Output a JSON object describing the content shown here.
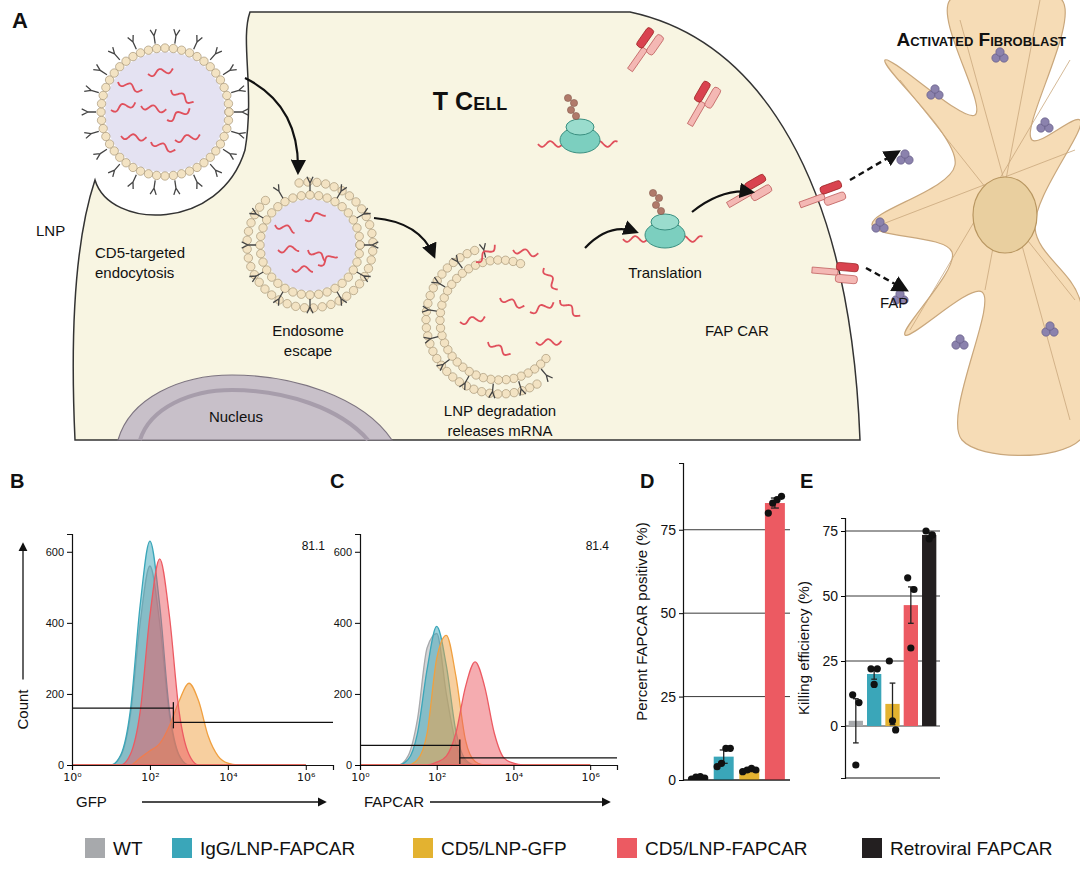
{
  "diagram": {
    "label": "A",
    "cell": "T Cell",
    "target": "Activated Fibroblast",
    "particle": "LNP",
    "steps": [
      [
        "CD5-targeted",
        "endocytosis"
      ],
      [
        "Endosome",
        "escape"
      ],
      [
        "LNP degradation",
        "releases mRNA"
      ],
      [
        "Translation"
      ]
    ],
    "receptor": "FAP CAR",
    "antigen": "FAP",
    "nucleus": "Nucleus"
  },
  "chart_data": [
    {
      "type": "area",
      "title": "B",
      "log": "x",
      "x": [
        1,
        1.78,
        3.16,
        5.62,
        10,
        17.8,
        31.6,
        56.2,
        100,
        178,
        316,
        562,
        1000,
        1780,
        3160,
        5620,
        10000,
        17800,
        31600,
        56200,
        100000,
        178000,
        316000,
        562000,
        1000000
      ],
      "series": [
        {
          "color": "#a7a9ac",
          "values": [
            0,
            0,
            0,
            0,
            0,
            25,
            140,
            400,
            560,
            400,
            140,
            25,
            0,
            0,
            0,
            0,
            0,
            0,
            0,
            0,
            0,
            0,
            0,
            0,
            0
          ]
        },
        {
          "color": "#3aa6b9",
          "values": [
            0,
            0,
            0,
            0,
            0,
            28,
            155,
            450,
            630,
            450,
            155,
            28,
            0,
            0,
            0,
            0,
            0,
            0,
            0,
            0,
            0,
            0,
            0,
            0,
            0
          ]
        },
        {
          "color": "#f0a040",
          "values": [
            0,
            0,
            0,
            0,
            0,
            0,
            0,
            20,
            40,
            60,
            110,
            180,
            230,
            180,
            80,
            25,
            5,
            0,
            0,
            0,
            0,
            0,
            0,
            0,
            0
          ]
        },
        {
          "color": "#ec5a62",
          "values": [
            0,
            0,
            0,
            0,
            0,
            0,
            30,
            150,
            420,
            580,
            420,
            150,
            30,
            0,
            0,
            0,
            0,
            0,
            0,
            0,
            0,
            0,
            0,
            0,
            0
          ]
        }
      ],
      "xlim": [
        1,
        5000000
      ],
      "ylim": [
        0,
        650
      ],
      "xticks": [
        {
          "value": 1,
          "label": "10⁰"
        },
        {
          "value": 100,
          "label": "10²"
        },
        {
          "value": 10000,
          "label": "10⁴"
        },
        {
          "value": 1000000,
          "label": "10⁶"
        }
      ],
      "yticks": [
        0,
        200,
        400,
        600
      ],
      "x_label": "GFP",
      "y_label": "Count",
      "annotations": [
        "81.1"
      ],
      "gate": 400,
      "gate_counts": [
        160,
        120
      ]
    },
    {
      "type": "area",
      "title": "C",
      "log": "x",
      "x": [
        1,
        1.78,
        3.16,
        5.62,
        10,
        17.8,
        31.6,
        56.2,
        100,
        178,
        316,
        562,
        1000,
        1780,
        3160,
        5620,
        10000,
        17800,
        31600,
        56200,
        100000,
        178000,
        316000,
        562000,
        1000000
      ],
      "series": [
        {
          "color": "#a7a9ac",
          "values": [
            0,
            0,
            0,
            0,
            0,
            25,
            130,
            330,
            370,
            200,
            60,
            10,
            0,
            0,
            0,
            0,
            0,
            0,
            0,
            0,
            0,
            0,
            0,
            0,
            0
          ]
        },
        {
          "color": "#3aa6b9",
          "values": [
            0,
            0,
            0,
            0,
            0,
            15,
            90,
            270,
            390,
            280,
            95,
            15,
            0,
            0,
            0,
            0,
            0,
            0,
            0,
            0,
            0,
            0,
            0,
            0,
            0
          ]
        },
        {
          "color": "#f0a040",
          "values": [
            0,
            0,
            0,
            0,
            0,
            0,
            15,
            90,
            300,
            365,
            250,
            70,
            10,
            0,
            0,
            0,
            0,
            0,
            0,
            0,
            0,
            0,
            0,
            0,
            0
          ]
        },
        {
          "color": "#ec5a62",
          "values": [
            0,
            0,
            0,
            0,
            0,
            0,
            0,
            0,
            8,
            25,
            90,
            220,
            290,
            220,
            90,
            20,
            5,
            0,
            0,
            0,
            0,
            0,
            0,
            0,
            0
          ]
        }
      ],
      "xlim": [
        1,
        5000000
      ],
      "ylim": [
        0,
        650
      ],
      "xticks": [
        {
          "value": 1,
          "label": "10⁰"
        },
        {
          "value": 100,
          "label": "10²"
        },
        {
          "value": 10000,
          "label": "10⁴"
        },
        {
          "value": 1000000,
          "label": "10⁶"
        }
      ],
      "yticks": [
        0,
        200,
        400,
        600
      ],
      "x_label": "FAPCAR",
      "annotations": [
        "81.4"
      ],
      "gate": 400,
      "gate_counts": [
        55,
        20
      ]
    },
    {
      "type": "bar",
      "title": "D",
      "categories": [
        null,
        null,
        null,
        null
      ],
      "values": [
        0.7,
        7,
        3,
        83
      ],
      "errors": [
        0.3,
        2,
        0.5,
        1.5
      ],
      "points": [
        [
          0.3,
          0.9,
          1,
          0.6
        ],
        [
          4,
          5,
          9.5,
          9.5
        ],
        [
          2.5,
          3,
          3.5,
          3
        ],
        [
          80,
          83,
          84,
          85
        ]
      ],
      "colors": [
        "#a7a9ac",
        "#3aa6b9",
        "#e3b230",
        "#ec5a62"
      ],
      "ylim": [
        0,
        95
      ],
      "yticks": [
        0,
        25,
        50,
        75
      ],
      "grid": true,
      "tick_labels": "y",
      "y_label": "Percent FAPCAR positive (%)"
    },
    {
      "type": "bar",
      "title": "E",
      "categories": [
        null,
        null,
        null,
        null,
        null
      ],
      "values": [
        2,
        20,
        8.5,
        46.5,
        73.5
      ],
      "errors": [
        8.5,
        2,
        8,
        7,
        1
      ],
      "points": [
        [
          12,
          -15,
          9
        ],
        [
          22,
          16,
          22
        ],
        [
          25,
          2,
          -1.5
        ],
        [
          57,
          30,
          52.5
        ],
        [
          75,
          72,
          73.5
        ]
      ],
      "colors": [
        "#a7a9ac",
        "#3aa6b9",
        "#e3b230",
        "#ec5a62",
        "#231f20"
      ],
      "ylim": [
        -20,
        80
      ],
      "yticks": [
        0,
        25,
        50,
        75
      ],
      "grid": true,
      "tick_labels": "y",
      "y_label": "Killing efficiency (%)"
    }
  ],
  "legend_items": [
    {
      "name": "WT",
      "color": "#a7a9ac"
    },
    {
      "name": "IgG/LNP-FAPCAR",
      "color": "#3aa6b9"
    },
    {
      "name": "CD5/LNP-GFP",
      "color": "#e3b230"
    },
    {
      "name": "CD5/LNP-FAPCAR",
      "color": "#ec5a62"
    },
    {
      "name": "Retroviral FAPCAR",
      "color": "#231f20"
    }
  ]
}
